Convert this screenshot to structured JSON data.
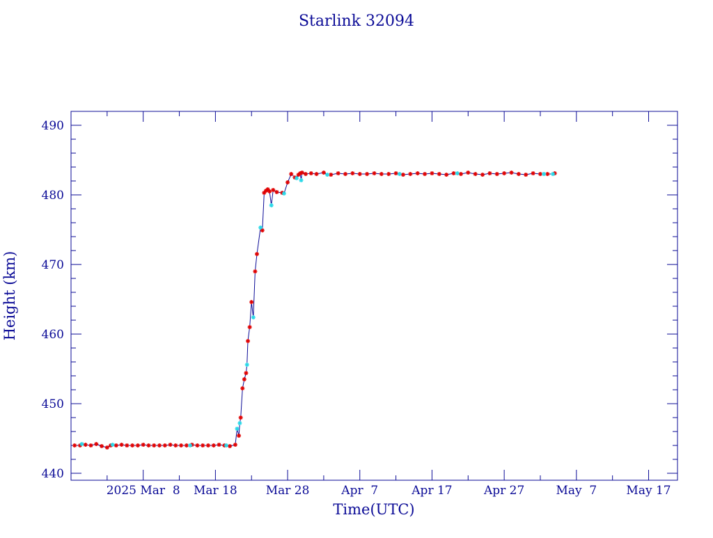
{
  "chart_data": {
    "type": "line",
    "title": "Starlink 32094",
    "xlabel": "Time(UTC)",
    "ylabel": "Height (km)",
    "x_tick_labels": [
      "2025 Mar  8",
      "Mar 18",
      "Mar 28",
      "Apr  7",
      "Apr 17",
      "Apr 27",
      "May  7",
      "May 17"
    ],
    "x_tick_dates": [
      "2025-03-08",
      "2025-03-18",
      "2025-03-28",
      "2025-04-07",
      "2025-04-17",
      "2025-04-27",
      "2025-05-07",
      "2025-05-17"
    ],
    "x_range": [
      "2025-02-26T00:00",
      "2025-05-21T00:00"
    ],
    "y_ticks": [
      440,
      450,
      460,
      470,
      480,
      490
    ],
    "ylim": [
      439,
      492
    ],
    "grid": false,
    "colors": {
      "axis": "#0a0a96",
      "line": "#0a0a96",
      "marker_primary": "#e00000",
      "marker_secondary": "#28d8e8"
    },
    "series": [
      {
        "marker_color": "marker_primary",
        "x": [
          "2025-02-26T12:00",
          "2025-02-27T06:00",
          "2025-02-28T00:00",
          "2025-02-28T18:00",
          "2025-03-01T12:00",
          "2025-03-02T06:00",
          "2025-03-03T00:00",
          "2025-03-03T12:00",
          "2025-03-04T06:00",
          "2025-03-05T00:00",
          "2025-03-05T18:00",
          "2025-03-06T12:00",
          "2025-03-07T06:00",
          "2025-03-08T00:00",
          "2025-03-08T18:00",
          "2025-03-09T12:00",
          "2025-03-10T06:00",
          "2025-03-11T00:00",
          "2025-03-11T18:00",
          "2025-03-12T12:00",
          "2025-03-13T06:00",
          "2025-03-14T00:00",
          "2025-03-14T18:00",
          "2025-03-15T12:00",
          "2025-03-16T06:00",
          "2025-03-17T00:00",
          "2025-03-17T18:00",
          "2025-03-18T12:00",
          "2025-03-19T06:00",
          "2025-03-20T00:00",
          "2025-03-20T18:00",
          "2025-03-21T06:00",
          "2025-03-21T12:00",
          "2025-03-21T18:00",
          "2025-03-22T00:00",
          "2025-03-22T06:00",
          "2025-03-22T12:00",
          "2025-03-22T18:00",
          "2025-03-23T00:00",
          "2025-03-23T12:00",
          "2025-03-23T18:00",
          "2025-03-24T12:00",
          "2025-03-24T18:00",
          "2025-03-25T00:00",
          "2025-03-25T06:00",
          "2025-03-25T12:00",
          "2025-03-26T00:00",
          "2025-03-26T12:00",
          "2025-03-27T06:00",
          "2025-03-28T00:00",
          "2025-03-28T12:00",
          "2025-03-29T00:00",
          "2025-03-29T12:00",
          "2025-03-29T18:00",
          "2025-03-30T00:00",
          "2025-03-30T12:00",
          "2025-03-31T06:00",
          "2025-04-01T00:00",
          "2025-04-02T00:00",
          "2025-04-03T00:00",
          "2025-04-04T00:00",
          "2025-04-05T00:00",
          "2025-04-06T00:00",
          "2025-04-07T00:00",
          "2025-04-08T00:00",
          "2025-04-09T00:00",
          "2025-04-10T00:00",
          "2025-04-11T00:00",
          "2025-04-12T00:00",
          "2025-04-13T00:00",
          "2025-04-14T00:00",
          "2025-04-15T00:00",
          "2025-04-16T00:00",
          "2025-04-17T00:00",
          "2025-04-18T00:00",
          "2025-04-19T00:00",
          "2025-04-20T00:00",
          "2025-04-21T00:00",
          "2025-04-22T00:00",
          "2025-04-23T00:00",
          "2025-04-24T00:00",
          "2025-04-25T00:00",
          "2025-04-26T00:00",
          "2025-04-27T00:00",
          "2025-04-28T00:00",
          "2025-04-29T00:00",
          "2025-04-30T00:00",
          "2025-05-01T00:00",
          "2025-05-02T00:00",
          "2025-05-03T00:00",
          "2025-05-04T00:00"
        ],
        "y": [
          444.0,
          444.0,
          444.1,
          444.0,
          444.2,
          443.9,
          443.7,
          444.0,
          444.0,
          444.1,
          444.0,
          444.0,
          444.0,
          444.1,
          444.0,
          444.0,
          444.0,
          444.0,
          444.1,
          444.0,
          444.0,
          444.0,
          444.1,
          444.0,
          444.0,
          444.0,
          444.0,
          444.1,
          444.0,
          443.9,
          444.1,
          445.4,
          448.0,
          452.2,
          453.5,
          454.4,
          459.0,
          461.0,
          464.6,
          469.0,
          471.5,
          474.9,
          480.3,
          480.6,
          480.8,
          480.5,
          480.7,
          480.4,
          480.3,
          481.8,
          483.0,
          482.5,
          482.9,
          483.1,
          483.2,
          483.0,
          483.1,
          483.0,
          483.2,
          482.9,
          483.1,
          483.0,
          483.1,
          483.0,
          483.0,
          483.1,
          483.0,
          483.0,
          483.1,
          482.9,
          483.0,
          483.1,
          483.0,
          483.1,
          483.0,
          482.9,
          483.1,
          483.0,
          483.2,
          483.0,
          482.9,
          483.1,
          483.0,
          483.1,
          483.2,
          483.0,
          482.9,
          483.1,
          483.0,
          483.0,
          483.1
        ]
      },
      {
        "marker_color": "marker_secondary",
        "x": [
          "2025-02-27T12:00",
          "2025-03-03T18:00",
          "2025-03-14T12:00",
          "2025-03-19T12:00",
          "2025-03-21T00:00",
          "2025-03-21T09:00",
          "2025-03-22T09:00",
          "2025-03-23T06:00",
          "2025-03-24T06:00",
          "2025-03-25T18:00",
          "2025-03-27T12:00",
          "2025-03-29T06:00",
          "2025-03-29T21:00",
          "2025-04-02T12:00",
          "2025-04-12T12:00",
          "2025-04-20T12:00",
          "2025-05-02T12:00",
          "2025-05-03T18:00"
        ],
        "y": [
          444.2,
          444.1,
          444.0,
          444.0,
          446.4,
          447.2,
          455.6,
          462.4,
          475.3,
          478.5,
          480.2,
          482.4,
          482.1,
          482.9,
          483.0,
          483.1,
          483.0,
          483.0
        ]
      }
    ]
  }
}
